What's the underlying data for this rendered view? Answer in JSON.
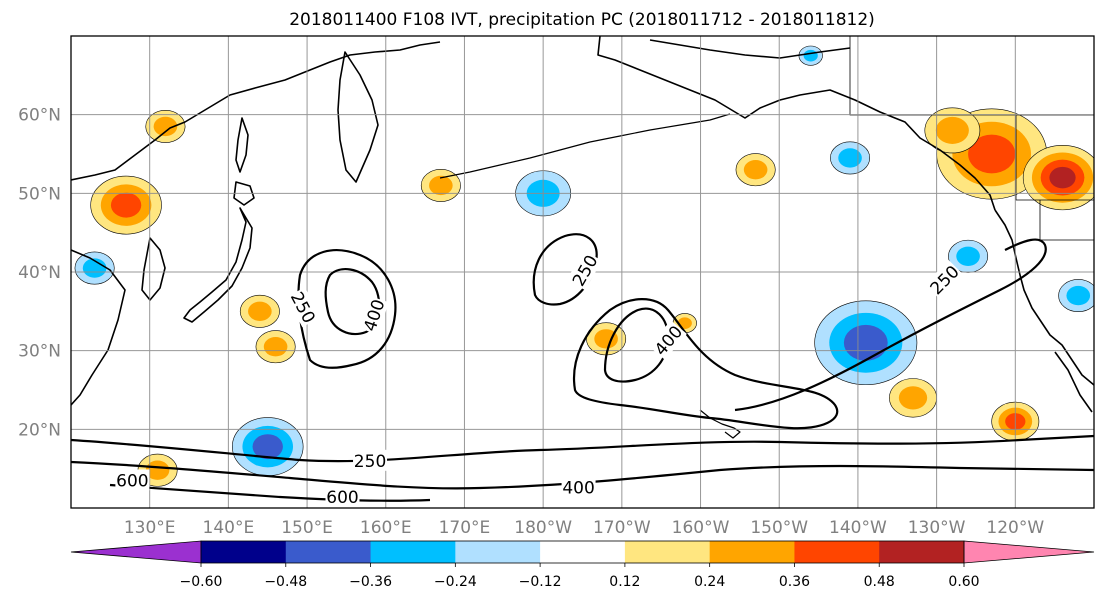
{
  "chart_data": {
    "type": "heatmap",
    "title": "2018011400 F108 IVT, precipitation PC (2018011712 - 2018011812)",
    "map": {
      "lon_range": [
        120,
        250
      ],
      "lat_range": [
        10,
        70
      ],
      "grid": true,
      "lon_ticks": [
        {
          "lon": 130,
          "label": "130°E"
        },
        {
          "lon": 140,
          "label": "140°E"
        },
        {
          "lon": 150,
          "label": "150°E"
        },
        {
          "lon": 160,
          "label": "160°E"
        },
        {
          "lon": 170,
          "label": "170°E"
        },
        {
          "lon": 180,
          "label": "180°W"
        },
        {
          "lon": 190,
          "label": "170°W"
        },
        {
          "lon": 200,
          "label": "160°W"
        },
        {
          "lon": 210,
          "label": "150°W"
        },
        {
          "lon": 220,
          "label": "140°W"
        },
        {
          "lon": 230,
          "label": "130°W"
        },
        {
          "lon": 240,
          "label": "120°W"
        }
      ],
      "lat_ticks": [
        {
          "lat": 60,
          "label": "60°N"
        },
        {
          "lat": 50,
          "label": "50°N"
        },
        {
          "lat": 40,
          "label": "40°N"
        },
        {
          "lat": 30,
          "label": "30°N"
        },
        {
          "lat": 20,
          "label": "20°N"
        }
      ]
    },
    "ivt_contours": {
      "levels": [
        250,
        400,
        600
      ],
      "labels": [
        {
          "text": "250",
          "lon": 149.5,
          "lat": 35.5,
          "rotate": 62
        },
        {
          "text": "400",
          "lon": 158.5,
          "lat": 34.5,
          "rotate": -72
        },
        {
          "text": "250",
          "lon": 185.3,
          "lat": 40.2,
          "rotate": -60
        },
        {
          "text": "400",
          "lon": 195.9,
          "lat": 31.3,
          "rotate": -50
        },
        {
          "text": "250",
          "lon": 231.0,
          "lat": 39.0,
          "rotate": -45
        },
        {
          "text": "250",
          "lon": 158.0,
          "lat": 16.0,
          "rotate": 0
        },
        {
          "text": "400",
          "lon": 184.5,
          "lat": 12.6,
          "rotate": 0
        },
        {
          "text": "600",
          "lon": 127.8,
          "lat": 13.5,
          "rotate": 0
        },
        {
          "text": "600",
          "lon": 154.5,
          "lat": 11.4,
          "rotate": 0
        }
      ]
    },
    "precip_pc": {
      "colorbar": {
        "boundaries": [
          -0.6,
          -0.48,
          -0.36,
          -0.24,
          -0.12,
          0.12,
          0.24,
          0.36,
          0.48,
          0.6
        ],
        "tick_labels": [
          "−0.60",
          "−0.48",
          "−0.36",
          "−0.24",
          "−0.12",
          "0.12",
          "0.24",
          "0.36",
          "0.48",
          "0.60"
        ],
        "colors": [
          "#9b30d0",
          "#00008b",
          "#3a5bcc",
          "#00bfff",
          "#b0e0ff",
          "#ffffff",
          "#ffe680",
          "#ffa500",
          "#ff4500",
          "#b22222",
          "#ff85b0"
        ],
        "extend": "both"
      },
      "blobs": [
        {
          "lon": 127,
          "lat": 48.5,
          "r": 4.5,
          "v": 0.38
        },
        {
          "lon": 132,
          "lat": 58.5,
          "r": 2.5,
          "v": 0.26
        },
        {
          "lon": 146,
          "lat": 30.5,
          "r": 2.5,
          "v": 0.28
        },
        {
          "lon": 144,
          "lat": 35,
          "r": 2.5,
          "v": 0.3
        },
        {
          "lon": 167,
          "lat": 51,
          "r": 2.5,
          "v": 0.26
        },
        {
          "lon": 188,
          "lat": 31.5,
          "r": 2.5,
          "v": 0.28
        },
        {
          "lon": 207,
          "lat": 53,
          "r": 2.5,
          "v": 0.3
        },
        {
          "lon": 237,
          "lat": 55,
          "r": 7,
          "v": 0.45
        },
        {
          "lon": 246,
          "lat": 52,
          "r": 5,
          "v": 0.58
        },
        {
          "lon": 232,
          "lat": 58,
          "r": 3.5,
          "v": 0.3
        },
        {
          "lon": 227,
          "lat": 24,
          "r": 3,
          "v": 0.3
        },
        {
          "lon": 240,
          "lat": 21,
          "r": 3,
          "v": 0.38
        },
        {
          "lon": 198,
          "lat": 33.5,
          "r": 1.5,
          "v": 0.26
        },
        {
          "lon": 131,
          "lat": 14.8,
          "r": 2.5,
          "v": 0.25
        },
        {
          "lon": 145,
          "lat": 17.8,
          "r": 4.5,
          "v": -0.45
        },
        {
          "lon": 221,
          "lat": 31,
          "r": 6.5,
          "v": -0.42
        },
        {
          "lon": 234,
          "lat": 42,
          "r": 2.5,
          "v": -0.3
        },
        {
          "lon": 180,
          "lat": 50,
          "r": 3.5,
          "v": -0.3
        },
        {
          "lon": 219,
          "lat": 54.5,
          "r": 2.5,
          "v": -0.27
        },
        {
          "lon": 214,
          "lat": 67.5,
          "r": 1.5,
          "v": -0.27
        },
        {
          "lon": 248,
          "lat": 37,
          "r": 2.5,
          "v": -0.35
        },
        {
          "lon": 123,
          "lat": 40.5,
          "r": 2.5,
          "v": -0.3
        }
      ]
    }
  }
}
